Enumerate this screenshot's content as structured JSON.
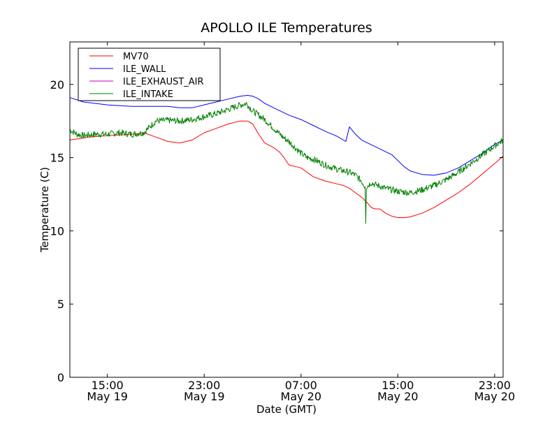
{
  "chart_data": {
    "type": "line",
    "title": "APOLLO ILE Temperatures",
    "xlabel": "Date (GMT)",
    "ylabel": "Temperature (C)",
    "x_unit": "hours",
    "xlim": [
      11.9,
      47.7
    ],
    "ylim": [
      0,
      22.9
    ],
    "yticks": [
      0,
      5,
      10,
      15,
      20
    ],
    "xticks": [
      {
        "x": 15,
        "time": "15:00",
        "date": "May 19"
      },
      {
        "x": 23,
        "time": "23:00",
        "date": "May 19"
      },
      {
        "x": 31,
        "time": "07:00",
        "date": "May 20"
      },
      {
        "x": 39,
        "time": "15:00",
        "date": "May 20"
      },
      {
        "x": 47,
        "time": "23:00",
        "date": "May 20"
      }
    ],
    "legend": {
      "position": "top-left"
    },
    "series": [
      {
        "name": "MV70",
        "color": "#ff0000",
        "points": [
          [
            11.9,
            16.2
          ],
          [
            13.5,
            16.4
          ],
          [
            15,
            16.5
          ],
          [
            17,
            16.6
          ],
          [
            18,
            16.7
          ],
          [
            19,
            16.4
          ],
          [
            20,
            16.1
          ],
          [
            21,
            16.0
          ],
          [
            22,
            16.2
          ],
          [
            23,
            16.7
          ],
          [
            24,
            17.0
          ],
          [
            25,
            17.3
          ],
          [
            26,
            17.5
          ],
          [
            26.6,
            17.5
          ],
          [
            27,
            17.3
          ],
          [
            27.5,
            16.6
          ],
          [
            28,
            16.0
          ],
          [
            28.7,
            15.7
          ],
          [
            29.2,
            15.4
          ],
          [
            29.6,
            15.0
          ],
          [
            30,
            14.5
          ],
          [
            30.5,
            14.4
          ],
          [
            31,
            14.3
          ],
          [
            31.5,
            14.0
          ],
          [
            32,
            13.7
          ],
          [
            33,
            13.4
          ],
          [
            34,
            13.2
          ],
          [
            34.5,
            13.1
          ],
          [
            35,
            12.9
          ],
          [
            35.5,
            12.6
          ],
          [
            36,
            12.3
          ],
          [
            36.5,
            11.9
          ],
          [
            36.8,
            11.6
          ],
          [
            37.1,
            11.5
          ],
          [
            37.5,
            11.5
          ],
          [
            38,
            11.2
          ],
          [
            38.5,
            11.0
          ],
          [
            39,
            10.9
          ],
          [
            39.5,
            10.9
          ],
          [
            40,
            10.95
          ],
          [
            41,
            11.2
          ],
          [
            42,
            11.6
          ],
          [
            43,
            12.1
          ],
          [
            44,
            12.6
          ],
          [
            45,
            13.2
          ],
          [
            46,
            13.9
          ],
          [
            47,
            14.6
          ],
          [
            47.7,
            15.1
          ]
        ]
      },
      {
        "name": "ILE_WALL",
        "color": "#0000ff",
        "points": [
          [
            11.9,
            19.1
          ],
          [
            13,
            18.8
          ],
          [
            15,
            18.6
          ],
          [
            17,
            18.5
          ],
          [
            18,
            18.5
          ],
          [
            19,
            18.5
          ],
          [
            20,
            18.5
          ],
          [
            21,
            18.4
          ],
          [
            22,
            18.4
          ],
          [
            23,
            18.6
          ],
          [
            24,
            18.8
          ],
          [
            25,
            19.0
          ],
          [
            26,
            19.2
          ],
          [
            26.6,
            19.25
          ],
          [
            27,
            19.2
          ],
          [
            27.5,
            19.0
          ],
          [
            28,
            18.7
          ],
          [
            29,
            18.3
          ],
          [
            30,
            17.9
          ],
          [
            31,
            17.6
          ],
          [
            32,
            17.2
          ],
          [
            33,
            16.8
          ],
          [
            34,
            16.45
          ],
          [
            34.7,
            16.1
          ],
          [
            35,
            17.1
          ],
          [
            35.5,
            16.6
          ],
          [
            36,
            16.2
          ],
          [
            37,
            15.8
          ],
          [
            38,
            15.4
          ],
          [
            38.5,
            15.2
          ],
          [
            39,
            14.8
          ],
          [
            39.5,
            14.4
          ],
          [
            40,
            14.1
          ],
          [
            41,
            13.85
          ],
          [
            42,
            13.8
          ],
          [
            43,
            13.95
          ],
          [
            44,
            14.3
          ],
          [
            45,
            14.8
          ],
          [
            46,
            15.3
          ],
          [
            47,
            15.9
          ],
          [
            47.7,
            16.2
          ]
        ]
      },
      {
        "name": "ILE_EXHAUST_AIR",
        "color": "#bf00bf",
        "points": []
      },
      {
        "name": "ILE_INTAKE",
        "color": "#008000",
        "noise": 0.22,
        "points": [
          [
            11.9,
            16.9
          ],
          [
            12.5,
            16.6
          ],
          [
            13,
            16.5
          ],
          [
            14,
            16.6
          ],
          [
            15,
            16.6
          ],
          [
            16,
            16.7
          ],
          [
            17,
            16.6
          ],
          [
            18,
            16.7
          ],
          [
            18.5,
            17.1
          ],
          [
            19,
            17.5
          ],
          [
            20,
            17.55
          ],
          [
            21,
            17.5
          ],
          [
            22,
            17.6
          ],
          [
            23,
            17.8
          ],
          [
            24,
            18.0
          ],
          [
            25,
            18.3
          ],
          [
            26,
            18.6
          ],
          [
            26.5,
            18.7
          ],
          [
            27,
            18.2
          ],
          [
            27.5,
            17.9
          ],
          [
            28,
            17.6
          ],
          [
            28.5,
            17.2
          ],
          [
            29,
            16.8
          ],
          [
            29.5,
            16.4
          ],
          [
            30,
            16.1
          ],
          [
            30.5,
            15.7
          ],
          [
            31,
            15.3
          ],
          [
            31.5,
            15.0
          ],
          [
            32,
            14.9
          ],
          [
            32.5,
            14.7
          ],
          [
            33,
            14.5
          ],
          [
            34,
            14.2
          ],
          [
            35,
            14.0
          ],
          [
            35.5,
            13.8
          ],
          [
            36,
            13.4
          ],
          [
            36.3,
            13.0
          ],
          [
            36.35,
            10.5
          ],
          [
            36.4,
            13.0
          ],
          [
            36.8,
            13.3
          ],
          [
            37,
            13.2
          ],
          [
            38,
            12.9
          ],
          [
            39,
            12.7
          ],
          [
            40,
            12.6
          ],
          [
            41,
            12.8
          ],
          [
            42,
            13.1
          ],
          [
            43,
            13.5
          ],
          [
            44,
            14.0
          ],
          [
            45,
            14.6
          ],
          [
            46,
            15.2
          ],
          [
            47,
            15.8
          ],
          [
            47.7,
            16.2
          ]
        ]
      }
    ]
  }
}
